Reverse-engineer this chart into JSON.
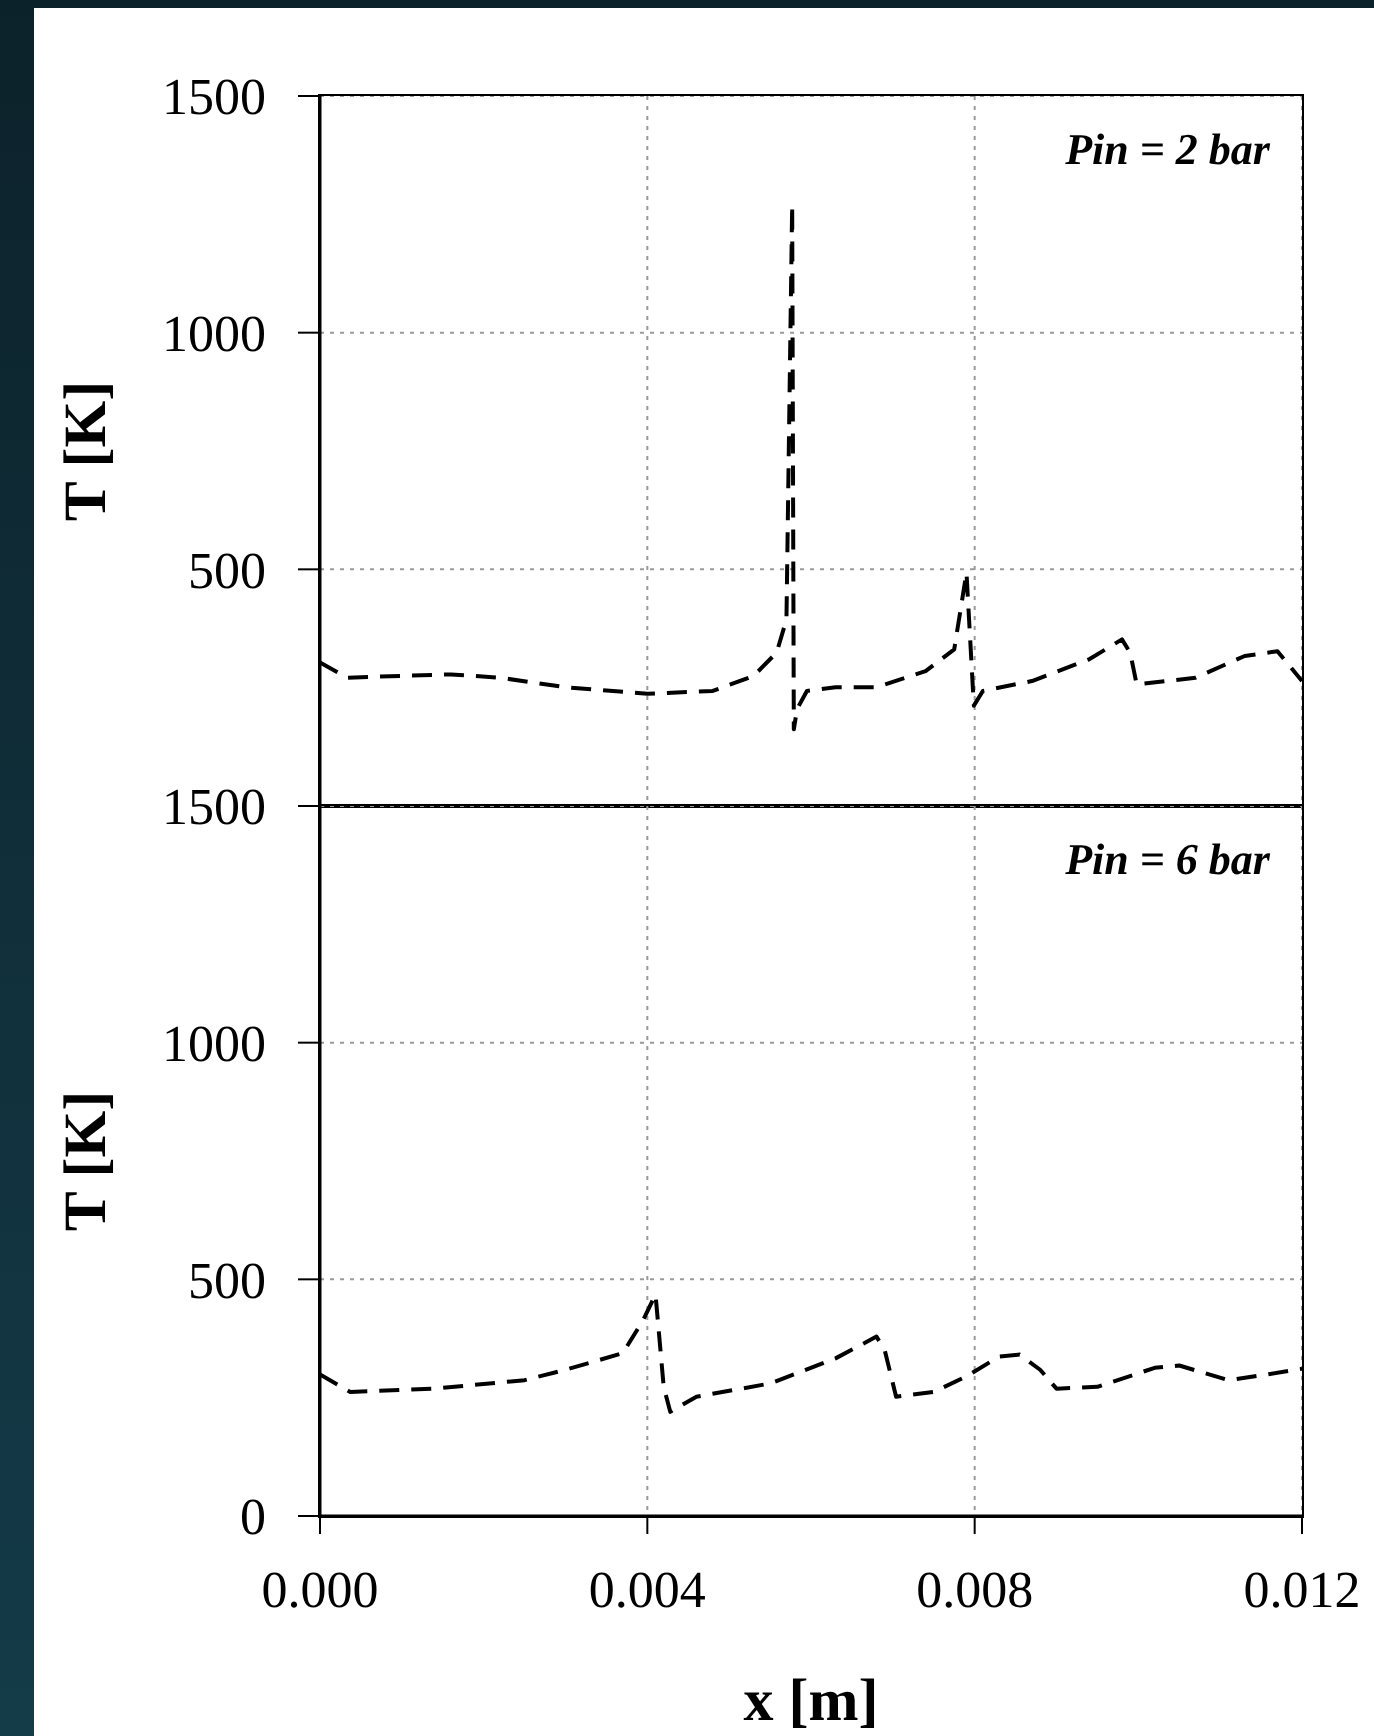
{
  "chart_data": [
    {
      "type": "line",
      "ylabel": "T [K]",
      "annotations": [
        "Pin = 2 bar"
      ],
      "x": [
        0,
        0.00033,
        0.001,
        0.0016,
        0.0022,
        0.003,
        0.004,
        0.0048,
        0.0053,
        0.00558,
        0.0057,
        0.00577,
        0.00579,
        0.00583,
        0.00595,
        0.0063,
        0.0068,
        0.0074,
        0.00775,
        0.0079,
        0.00799,
        0.0081,
        0.0087,
        0.0094,
        0.0098,
        0.0099,
        0.00998,
        0.0107,
        0.0113,
        0.0117,
        0.012
      ],
      "values": [
        303,
        271,
        275,
        278,
        271,
        251,
        237,
        243,
        275,
        324,
        394,
        1270,
        162,
        205,
        243,
        251,
        251,
        285,
        331,
        493,
        212,
        243,
        264,
        310,
        352,
        324,
        257,
        271,
        317,
        327,
        264
      ],
      "color": "#000000",
      "line_style": "dashed",
      "marker": "none",
      "grid": true,
      "tick_labels": "y",
      "xlim": [
        0,
        0.012
      ],
      "xticks": [
        0,
        0.004,
        0.008,
        0.012
      ],
      "ylim": [
        0,
        1500
      ],
      "yticks": [
        500,
        1000,
        1500
      ]
    },
    {
      "type": "line",
      "xlabel": "x [m]",
      "ylabel": "T [K]",
      "annotations": [
        "Pin = 6 bar"
      ],
      "x": [
        0,
        0.00037,
        0.0014,
        0.0025,
        0.003,
        0.0037,
        0.00395,
        0.0041,
        0.0042,
        0.00428,
        0.0046,
        0.0055,
        0.0063,
        0.0068,
        0.0069,
        0.00704,
        0.0075,
        0.0079,
        0.0083,
        0.00855,
        0.0088,
        0.009,
        0.0095,
        0.0102,
        0.0105,
        0.0111,
        0.0115,
        0.012
      ],
      "values": [
        299,
        262,
        269,
        287,
        309,
        344,
        414,
        468,
        273,
        220,
        252,
        280,
        333,
        379,
        351,
        252,
        262,
        295,
        337,
        341,
        309,
        269,
        273,
        313,
        318,
        287,
        297,
        311
      ],
      "color": "#000000",
      "line_style": "dashed",
      "marker": "none",
      "grid": true,
      "xlim": [
        0,
        0.012
      ],
      "xticks": [
        {
          "value": 0,
          "label": "0.000"
        },
        {
          "value": 0.004,
          "label": "0.004"
        },
        {
          "value": 0.008,
          "label": "0.008"
        },
        {
          "value": 0.012,
          "label": "0.012"
        }
      ],
      "ylim": [
        0,
        1500
      ],
      "yticks": [
        0,
        500,
        1000,
        1500
      ]
    }
  ]
}
